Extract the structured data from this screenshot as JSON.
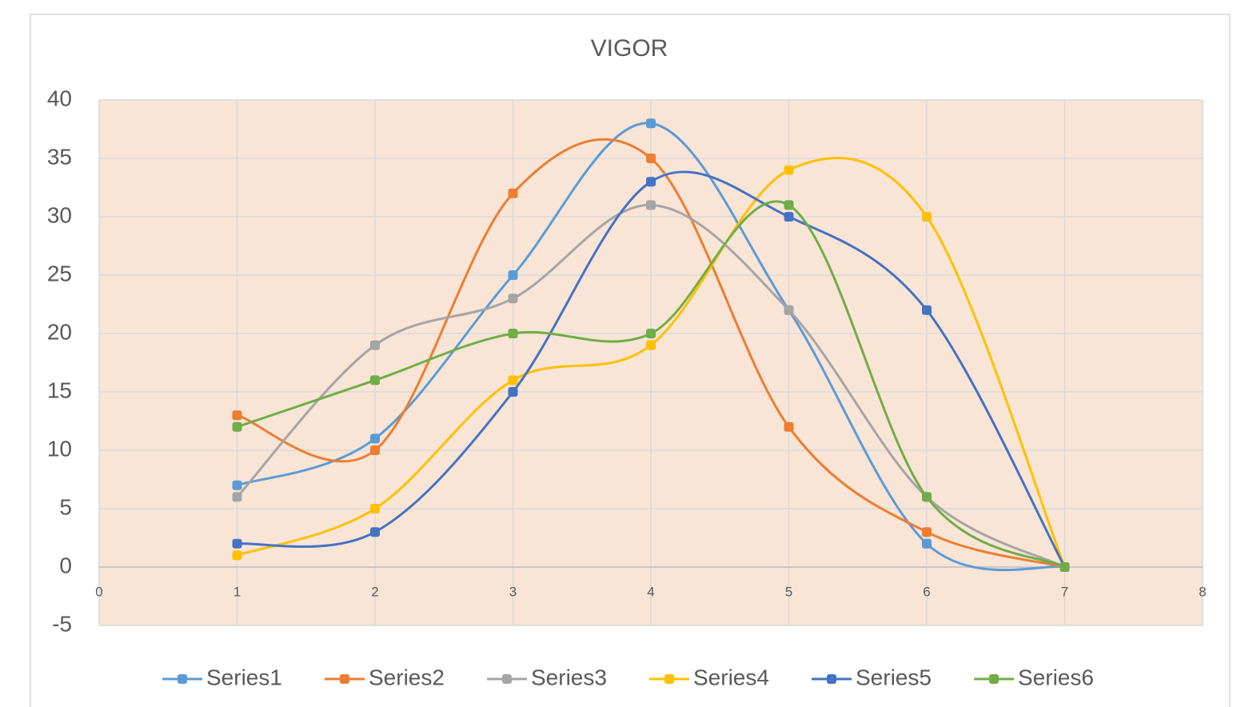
{
  "chart_data": {
    "type": "scatter-smooth",
    "title": "VIGOR",
    "x": [
      1,
      2,
      3,
      4,
      5,
      6,
      7
    ],
    "series": [
      {
        "name": "Series1",
        "color": "#5b9bd5",
        "values": [
          7,
          11,
          25,
          38,
          22,
          2,
          0
        ]
      },
      {
        "name": "Series2",
        "color": "#ed7d31",
        "values": [
          13,
          10,
          32,
          35,
          12,
          3,
          0
        ]
      },
      {
        "name": "Series3",
        "color": "#a5a5a5",
        "values": [
          6,
          19,
          23,
          31,
          22,
          6,
          0
        ]
      },
      {
        "name": "Series4",
        "color": "#ffc000",
        "values": [
          1,
          5,
          16,
          19,
          34,
          30,
          0
        ]
      },
      {
        "name": "Series5",
        "color": "#4472c4",
        "values": [
          2,
          3,
          15,
          33,
          30,
          22,
          0
        ]
      },
      {
        "name": "Series6",
        "color": "#70ad47",
        "values": [
          12,
          16,
          20,
          20,
          31,
          6,
          0
        ]
      }
    ],
    "xlim": [
      0,
      8
    ],
    "xticks": [
      0,
      1,
      2,
      3,
      4,
      5,
      6,
      7,
      8
    ],
    "ylim": [
      -5,
      40
    ],
    "yticks": [
      -5,
      0,
      5,
      10,
      15,
      20,
      25,
      30,
      35,
      40
    ],
    "grid": true,
    "legend": "bottom",
    "plot_background": "#f9e5d6"
  }
}
